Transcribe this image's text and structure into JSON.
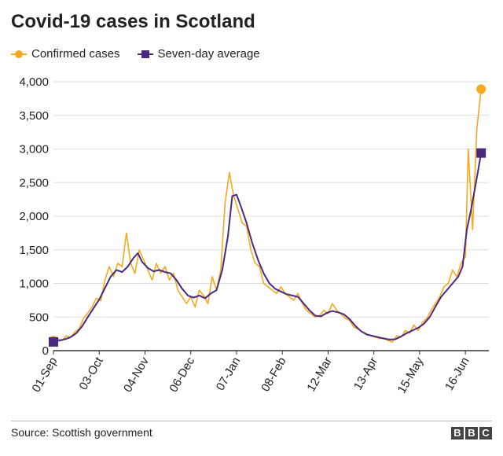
{
  "title": "Covid-19 cases in Scotland",
  "source": "Source: Scottish government",
  "logo_letters": [
    "B",
    "B",
    "C"
  ],
  "colors": {
    "confirmed": "#f5a91f",
    "average": "#4a2a7f",
    "grid": "#dddddd",
    "axis": "#333333"
  },
  "chart_data": {
    "type": "line",
    "title": "Covid-19 cases in Scotland",
    "xlabel": "",
    "ylabel": "",
    "ylim": [
      0,
      4000
    ],
    "yticks": [
      0,
      500,
      1000,
      1500,
      2000,
      2500,
      3000,
      3500,
      4000
    ],
    "ytick_labels": [
      "0",
      "500",
      "1,000",
      "1,500",
      "2,000",
      "2,500",
      "3,000",
      "3,500",
      "4,000"
    ],
    "x_start": "2020-09-01",
    "x_end": "2021-06-28",
    "x_ticks": [
      {
        "date": "2020-09-01",
        "label": "01-Sep"
      },
      {
        "date": "2020-10-03",
        "label": "03-Oct"
      },
      {
        "date": "2020-11-04",
        "label": "04-Nov"
      },
      {
        "date": "2020-12-06",
        "label": "06-Dec"
      },
      {
        "date": "2021-01-07",
        "label": "07-Jan"
      },
      {
        "date": "2021-02-08",
        "label": "08-Feb"
      },
      {
        "date": "2021-03-12",
        "label": "12-Mar"
      },
      {
        "date": "2021-04-13",
        "label": "13-Apr"
      },
      {
        "date": "2021-05-15",
        "label": "15-May"
      },
      {
        "date": "2021-06-16",
        "label": "16-Jun"
      }
    ],
    "legend": "top-left",
    "grid": "horizontal",
    "series": [
      {
        "name": "Confirmed cases",
        "marker": "circle",
        "points": [
          [
            "2020-09-01",
            150
          ],
          [
            "2020-09-04",
            180
          ],
          [
            "2020-09-07",
            150
          ],
          [
            "2020-09-10",
            220
          ],
          [
            "2020-09-13",
            200
          ],
          [
            "2020-09-16",
            280
          ],
          [
            "2020-09-19",
            330
          ],
          [
            "2020-09-22",
            480
          ],
          [
            "2020-09-25",
            560
          ],
          [
            "2020-09-28",
            650
          ],
          [
            "2020-10-01",
            780
          ],
          [
            "2020-10-04",
            740
          ],
          [
            "2020-10-07",
            1050
          ],
          [
            "2020-10-10",
            1250
          ],
          [
            "2020-10-13",
            1100
          ],
          [
            "2020-10-16",
            1300
          ],
          [
            "2020-10-19",
            1250
          ],
          [
            "2020-10-22",
            1750
          ],
          [
            "2020-10-25",
            1300
          ],
          [
            "2020-10-28",
            1150
          ],
          [
            "2020-10-31",
            1500
          ],
          [
            "2020-11-03",
            1350
          ],
          [
            "2020-11-06",
            1200
          ],
          [
            "2020-11-09",
            1050
          ],
          [
            "2020-11-12",
            1300
          ],
          [
            "2020-11-15",
            1150
          ],
          [
            "2020-11-18",
            1250
          ],
          [
            "2020-11-21",
            1050
          ],
          [
            "2020-11-24",
            1150
          ],
          [
            "2020-11-27",
            900
          ],
          [
            "2020-11-30",
            800
          ],
          [
            "2020-12-03",
            700
          ],
          [
            "2020-12-06",
            800
          ],
          [
            "2020-12-09",
            650
          ],
          [
            "2020-12-12",
            900
          ],
          [
            "2020-12-15",
            820
          ],
          [
            "2020-12-18",
            700
          ],
          [
            "2020-12-21",
            1100
          ],
          [
            "2020-12-24",
            900
          ],
          [
            "2020-12-27",
            1200
          ],
          [
            "2020-12-30",
            2200
          ],
          [
            "2021-01-02",
            2650
          ],
          [
            "2021-01-05",
            2300
          ],
          [
            "2021-01-08",
            2100
          ],
          [
            "2021-01-11",
            1900
          ],
          [
            "2021-01-14",
            1850
          ],
          [
            "2021-01-17",
            1500
          ],
          [
            "2021-01-20",
            1300
          ],
          [
            "2021-01-23",
            1250
          ],
          [
            "2021-01-26",
            1000
          ],
          [
            "2021-01-29",
            950
          ],
          [
            "2021-02-01",
            900
          ],
          [
            "2021-02-04",
            850
          ],
          [
            "2021-02-07",
            950
          ],
          [
            "2021-02-10",
            850
          ],
          [
            "2021-02-13",
            800
          ],
          [
            "2021-02-16",
            750
          ],
          [
            "2021-02-19",
            850
          ],
          [
            "2021-02-22",
            700
          ],
          [
            "2021-02-25",
            600
          ],
          [
            "2021-02-28",
            550
          ],
          [
            "2021-03-03",
            500
          ],
          [
            "2021-03-06",
            520
          ],
          [
            "2021-03-09",
            600
          ],
          [
            "2021-03-12",
            550
          ],
          [
            "2021-03-15",
            700
          ],
          [
            "2021-03-18",
            600
          ],
          [
            "2021-03-21",
            550
          ],
          [
            "2021-03-24",
            480
          ],
          [
            "2021-03-27",
            450
          ],
          [
            "2021-03-30",
            350
          ],
          [
            "2021-04-02",
            320
          ],
          [
            "2021-04-05",
            280
          ],
          [
            "2021-04-08",
            250
          ],
          [
            "2021-04-11",
            220
          ],
          [
            "2021-04-14",
            200
          ],
          [
            "2021-04-17",
            180
          ],
          [
            "2021-04-20",
            190
          ],
          [
            "2021-04-23",
            150
          ],
          [
            "2021-04-26",
            130
          ],
          [
            "2021-04-29",
            220
          ],
          [
            "2021-05-02",
            200
          ],
          [
            "2021-05-05",
            300
          ],
          [
            "2021-05-08",
            260
          ],
          [
            "2021-05-11",
            380
          ],
          [
            "2021-05-14",
            300
          ],
          [
            "2021-05-17",
            420
          ],
          [
            "2021-05-20",
            480
          ],
          [
            "2021-05-23",
            600
          ],
          [
            "2021-05-26",
            700
          ],
          [
            "2021-05-29",
            800
          ],
          [
            "2021-06-01",
            950
          ],
          [
            "2021-06-04",
            1000
          ],
          [
            "2021-06-07",
            1200
          ],
          [
            "2021-06-10",
            1100
          ],
          [
            "2021-06-13",
            1300
          ],
          [
            "2021-06-16",
            1400
          ],
          [
            "2021-06-18",
            3000
          ],
          [
            "2021-06-21",
            1800
          ],
          [
            "2021-06-24",
            3300
          ],
          [
            "2021-06-27",
            3890
          ]
        ]
      },
      {
        "name": "Seven-day average",
        "marker": "square",
        "points": [
          [
            "2020-09-01",
            130
          ],
          [
            "2020-09-05",
            150
          ],
          [
            "2020-09-09",
            170
          ],
          [
            "2020-09-13",
            200
          ],
          [
            "2020-09-17",
            260
          ],
          [
            "2020-09-21",
            360
          ],
          [
            "2020-09-25",
            500
          ],
          [
            "2020-09-29",
            630
          ],
          [
            "2020-10-03",
            760
          ],
          [
            "2020-10-07",
            930
          ],
          [
            "2020-10-11",
            1100
          ],
          [
            "2020-10-15",
            1200
          ],
          [
            "2020-10-19",
            1170
          ],
          [
            "2020-10-23",
            1250
          ],
          [
            "2020-10-27",
            1380
          ],
          [
            "2020-10-30",
            1450
          ],
          [
            "2020-11-02",
            1320
          ],
          [
            "2020-11-06",
            1230
          ],
          [
            "2020-11-10",
            1180
          ],
          [
            "2020-11-14",
            1200
          ],
          [
            "2020-11-18",
            1170
          ],
          [
            "2020-11-22",
            1150
          ],
          [
            "2020-11-26",
            1050
          ],
          [
            "2020-11-30",
            920
          ],
          [
            "2020-12-04",
            820
          ],
          [
            "2020-12-08",
            790
          ],
          [
            "2020-12-12",
            820
          ],
          [
            "2020-12-16",
            780
          ],
          [
            "2020-12-20",
            850
          ],
          [
            "2020-12-24",
            900
          ],
          [
            "2020-12-28",
            1200
          ],
          [
            "2021-01-01",
            1700
          ],
          [
            "2021-01-04",
            2300
          ],
          [
            "2021-01-07",
            2320
          ],
          [
            "2021-01-10",
            2150
          ],
          [
            "2021-01-14",
            1900
          ],
          [
            "2021-01-18",
            1600
          ],
          [
            "2021-01-22",
            1350
          ],
          [
            "2021-01-26",
            1150
          ],
          [
            "2021-01-30",
            1000
          ],
          [
            "2021-02-03",
            920
          ],
          [
            "2021-02-07",
            880
          ],
          [
            "2021-02-11",
            840
          ],
          [
            "2021-02-15",
            820
          ],
          [
            "2021-02-19",
            800
          ],
          [
            "2021-02-23",
            700
          ],
          [
            "2021-02-27",
            600
          ],
          [
            "2021-03-03",
            520
          ],
          [
            "2021-03-07",
            510
          ],
          [
            "2021-03-11",
            560
          ],
          [
            "2021-03-15",
            590
          ],
          [
            "2021-03-19",
            570
          ],
          [
            "2021-03-23",
            540
          ],
          [
            "2021-03-27",
            470
          ],
          [
            "2021-03-31",
            370
          ],
          [
            "2021-04-04",
            290
          ],
          [
            "2021-04-08",
            240
          ],
          [
            "2021-04-12",
            220
          ],
          [
            "2021-04-16",
            200
          ],
          [
            "2021-04-20",
            180
          ],
          [
            "2021-04-24",
            165
          ],
          [
            "2021-04-28",
            170
          ],
          [
            "2021-05-02",
            210
          ],
          [
            "2021-05-06",
            260
          ],
          [
            "2021-05-10",
            300
          ],
          [
            "2021-05-14",
            340
          ],
          [
            "2021-05-18",
            400
          ],
          [
            "2021-05-22",
            500
          ],
          [
            "2021-05-26",
            650
          ],
          [
            "2021-05-30",
            800
          ],
          [
            "2021-06-03",
            900
          ],
          [
            "2021-06-07",
            1000
          ],
          [
            "2021-06-11",
            1100
          ],
          [
            "2021-06-14",
            1250
          ],
          [
            "2021-06-17",
            1800
          ],
          [
            "2021-06-20",
            2100
          ],
          [
            "2021-06-23",
            2450
          ],
          [
            "2021-06-27",
            2940
          ]
        ]
      }
    ]
  }
}
